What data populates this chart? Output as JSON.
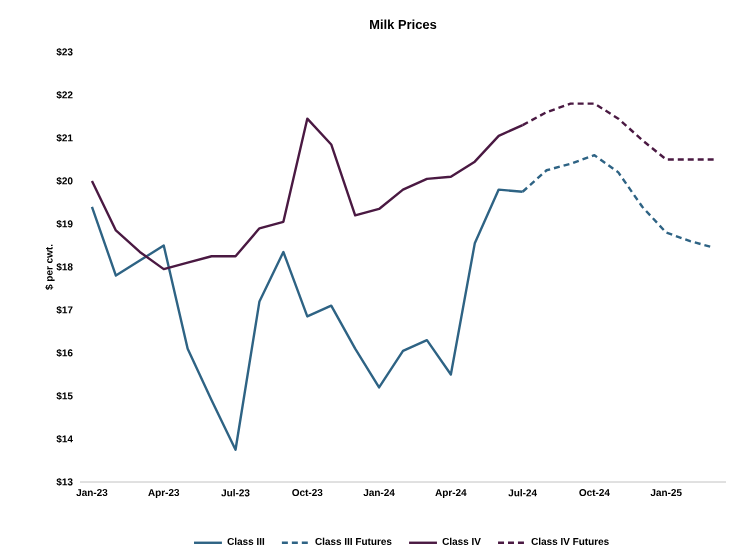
{
  "chart_data": {
    "type": "line",
    "title": "Milk Prices",
    "ylabel": "$ per cwt.",
    "categories": [
      "Jan-23",
      null,
      null,
      "Apr-23",
      null,
      null,
      "Jul-23",
      null,
      null,
      "Oct-23",
      null,
      null,
      "Jan-24",
      null,
      null,
      "Apr-24",
      null,
      null,
      "Jul-24",
      null,
      null,
      "Oct-24",
      null,
      null,
      "Jan-25",
      null,
      null
    ],
    "series": [
      {
        "name": "Class III",
        "color": "#2e6384",
        "line_style": "solid",
        "values": [
          19.4,
          17.8,
          18.15,
          18.5,
          16.1,
          14.9,
          13.75,
          17.2,
          18.35,
          16.85,
          17.1,
          16.1,
          15.2,
          16.05,
          16.3,
          15.5,
          18.55,
          19.8,
          19.75,
          null,
          null,
          null,
          null,
          null,
          null,
          null,
          null
        ]
      },
      {
        "name": "Class III Futures",
        "color": "#2e6384",
        "line_style": "dashed",
        "values": [
          null,
          null,
          null,
          null,
          null,
          null,
          null,
          null,
          null,
          null,
          null,
          null,
          null,
          null,
          null,
          null,
          null,
          null,
          19.75,
          20.25,
          20.4,
          20.6,
          20.2,
          19.4,
          18.8,
          18.6,
          18.45
        ]
      },
      {
        "name": "Class IV",
        "color": "#4a1942",
        "line_style": "solid",
        "values": [
          20.0,
          18.85,
          18.35,
          17.95,
          18.1,
          18.25,
          18.25,
          18.9,
          19.05,
          21.45,
          20.85,
          19.2,
          19.35,
          19.8,
          20.05,
          20.1,
          20.45,
          21.05,
          21.3,
          null,
          null,
          null,
          null,
          null,
          null,
          null,
          null
        ]
      },
      {
        "name": "Class IV Futures",
        "color": "#4a1942",
        "line_style": "dashed",
        "values": [
          null,
          null,
          null,
          null,
          null,
          null,
          null,
          null,
          null,
          null,
          null,
          null,
          null,
          null,
          null,
          null,
          null,
          null,
          21.3,
          21.6,
          21.8,
          21.8,
          21.45,
          20.95,
          20.5,
          20.5,
          20.5
        ]
      }
    ],
    "ylim": [
      13,
      23
    ],
    "yticks": [
      {
        "value": 13,
        "label": "$13"
      },
      {
        "value": 14,
        "label": "$14"
      },
      {
        "value": 15,
        "label": "$15"
      },
      {
        "value": 16,
        "label": "$16"
      },
      {
        "value": 17,
        "label": "$17"
      },
      {
        "value": 18,
        "label": "$18"
      },
      {
        "value": 19,
        "label": "$19"
      },
      {
        "value": 20,
        "label": "$20"
      },
      {
        "value": 21,
        "label": "$21"
      },
      {
        "value": 22,
        "label": "$22"
      },
      {
        "value": 23,
        "label": "$23"
      }
    ],
    "legend": "bottom",
    "grid": false,
    "marker": "none"
  }
}
